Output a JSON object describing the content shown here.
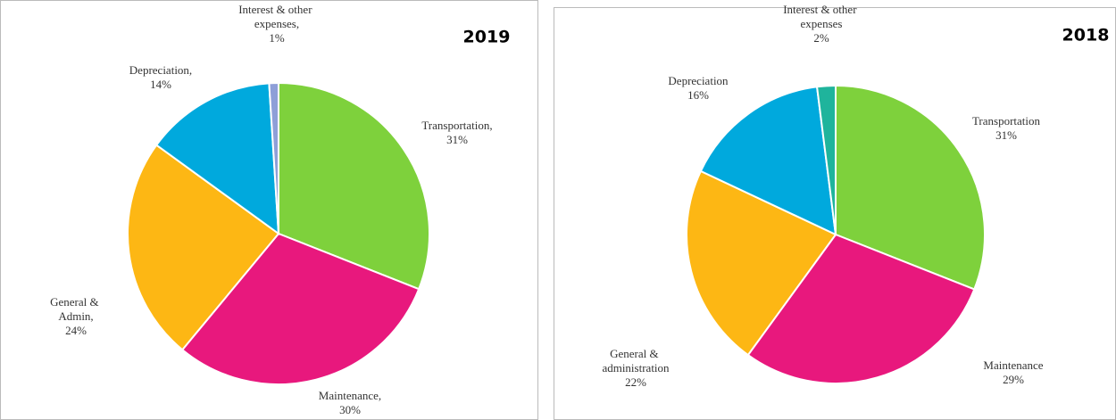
{
  "chart_data": [
    {
      "type": "pie",
      "title": "2019",
      "categories": [
        "Transportation,",
        "Maintenance,",
        "General & Admin,",
        "Depreciation,",
        "Interest & other expenses,"
      ],
      "values": [
        31,
        30,
        24,
        14,
        1
      ],
      "value_labels": [
        "31%",
        "30%",
        "24%",
        "14%",
        "1%"
      ],
      "colors": [
        "#7ed13c",
        "#e8187d",
        "#fdb714",
        "#00a9dd",
        "#8e9fd8"
      ]
    },
    {
      "type": "pie",
      "title": "2018",
      "categories": [
        "Transportation",
        "Maintenance",
        "General & administration",
        "Depreciation",
        "Interest & other expenses"
      ],
      "values": [
        31,
        29,
        22,
        16,
        2
      ],
      "value_labels": [
        "31%",
        "29%",
        "22%",
        "16%",
        "2%"
      ],
      "colors": [
        "#7ed13c",
        "#e8187d",
        "#fdb714",
        "#00a9dd",
        "#1fb49c"
      ]
    }
  ]
}
